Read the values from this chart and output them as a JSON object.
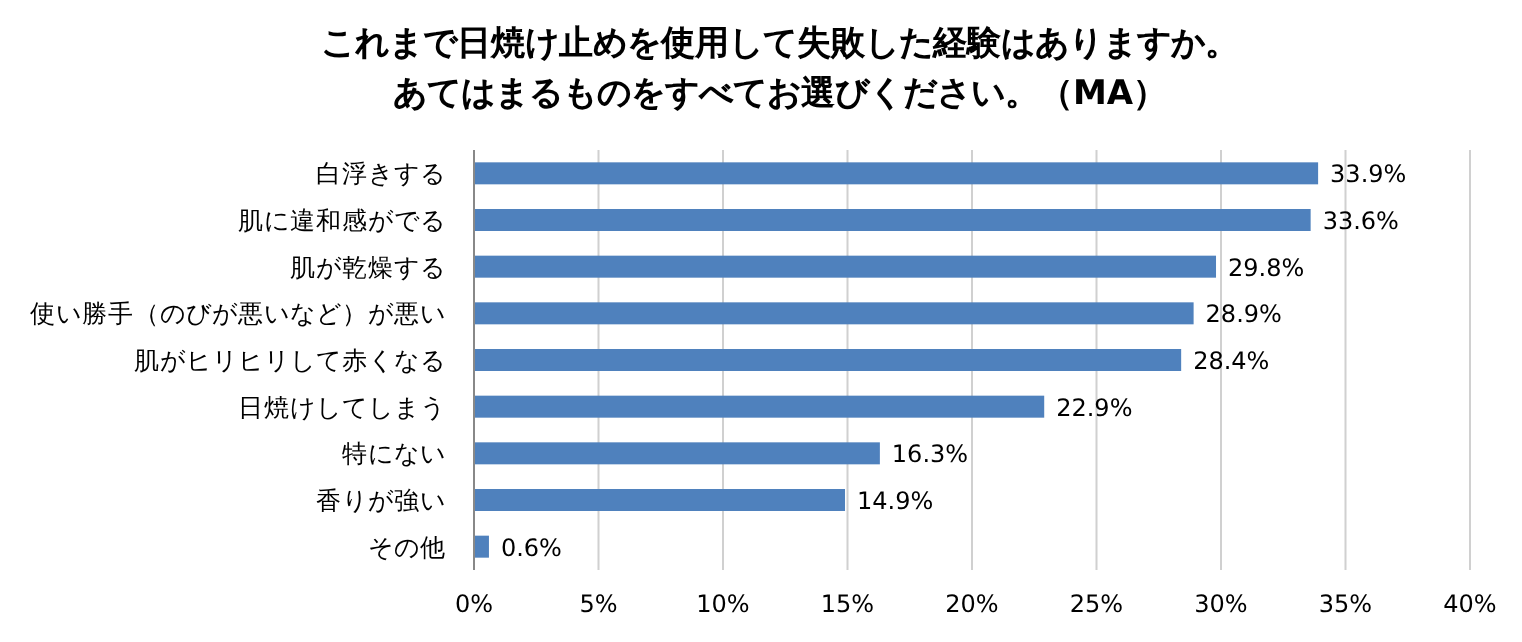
{
  "chart_data": {
    "type": "bar",
    "orientation": "horizontal",
    "title": "これまで日焼け止めを使用して失敗した経験はありますか。",
    "subtitle": "あてはまるものをすべてお選びください。（MA）",
    "categories": [
      "白浮きする",
      "肌に違和感がでる",
      "肌が乾燥する",
      "使い勝手（のびが悪いなど）が悪い",
      "肌がヒリヒリして赤くなる",
      "日焼けしてしまう",
      "特にない",
      "香りが強い",
      "その他"
    ],
    "values": [
      33.9,
      33.6,
      29.8,
      28.9,
      28.4,
      22.9,
      16.3,
      14.9,
      0.6
    ],
    "value_labels": [
      "33.9%",
      "33.6%",
      "29.8%",
      "28.9%",
      "28.4%",
      "22.9%",
      "16.3%",
      "14.9%",
      "0.6%"
    ],
    "color": "#4f81bd",
    "xlim": [
      0,
      40
    ],
    "xticks": [
      {
        "value": 0,
        "label": "0%"
      },
      {
        "value": 5,
        "label": "5%"
      },
      {
        "value": 10,
        "label": "10%"
      },
      {
        "value": 15,
        "label": "15%"
      },
      {
        "value": 20,
        "label": "20%"
      },
      {
        "value": 25,
        "label": "25%"
      },
      {
        "value": 30,
        "label": "30%"
      },
      {
        "value": 35,
        "label": "35%"
      },
      {
        "value": 40,
        "label": "40%"
      }
    ],
    "grid": "x"
  }
}
